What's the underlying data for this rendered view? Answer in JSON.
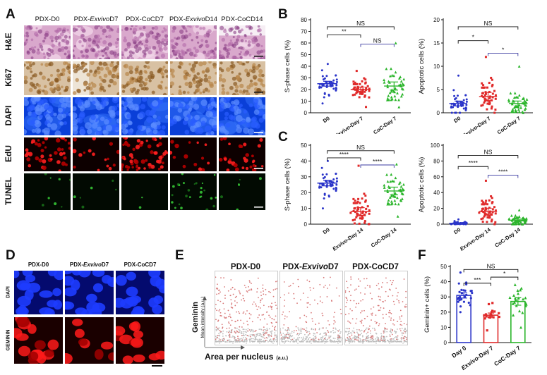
{
  "panelA": {
    "label": "A",
    "columns": [
      "PDX-D0",
      "PDX-ExvivoD7",
      "PDX-CoCD7",
      "PDX-ExvivoD14",
      "PDX-CoCD14"
    ],
    "column_parts": [
      {
        "pre": "PDX-D0",
        "it": "",
        "post": ""
      },
      {
        "pre": "PDX-",
        "it": "Exvivo",
        "post": "D7"
      },
      {
        "pre": "PDX-CoCD7",
        "it": "",
        "post": ""
      },
      {
        "pre": "PDX-",
        "it": "Exvivo",
        "post": "D14"
      },
      {
        "pre": "PDX-CoCD14",
        "it": "",
        "post": ""
      }
    ],
    "rows": [
      "H&E",
      "Ki67",
      "DAPI",
      "EdU",
      "TUNEL"
    ]
  },
  "panelB": {
    "label": "B"
  },
  "panelC": {
    "label": "C"
  },
  "panelD": {
    "label": "D",
    "columns": [
      "PDX-D0",
      "PDX-ExvivoD7",
      "PDX-CoCD7"
    ],
    "column_parts": [
      {
        "pre": "PDX-D0",
        "it": "",
        "post": ""
      },
      {
        "pre": "PDX-",
        "it": "Exvivo",
        "post": "D7"
      },
      {
        "pre": "PDX-CoCD7",
        "it": "",
        "post": ""
      }
    ],
    "rows": [
      "DAPI",
      "GEMININ"
    ]
  },
  "panelE": {
    "label": "E",
    "titles": [
      "PDX-D0",
      "PDX-ExvivoD7",
      "PDX-CoCD7"
    ],
    "title_parts": [
      {
        "pre": "PDX-D0",
        "it": "",
        "post": ""
      },
      {
        "pre": "PDX-",
        "it": "Exvivo",
        "post": "D7"
      },
      {
        "pre": "PDX-CoCD7",
        "it": "",
        "post": ""
      }
    ],
    "ylabel": "Geminin",
    "ylabel_sub": "Mean intensity (a.u.)",
    "xlabel": "Area per nucleus",
    "xlabel_sub": "(a.u.)"
  },
  "panelF": {
    "label": "F"
  },
  "chart_data": [
    {
      "id": "B1",
      "type": "scatter",
      "ylabel": "S-phase cells (%)",
      "ylim": [
        0,
        80
      ],
      "yticks": [
        0,
        10,
        20,
        30,
        40,
        50,
        60,
        70,
        80
      ],
      "categories": [
        "D0",
        "Exvivo-Day 7",
        "CoC-Day 7"
      ],
      "colors": [
        "#2b35c9",
        "#e02a2a",
        "#2bb52b"
      ],
      "means": [
        25,
        20,
        23
      ],
      "sd": [
        6,
        6,
        10
      ],
      "n": [
        45,
        45,
        45
      ],
      "spread": [
        [
          8,
          42
        ],
        [
          5,
          36
        ],
        [
          5,
          60
        ]
      ],
      "brackets": [
        {
          "from": 0,
          "to": 1,
          "label": "**",
          "y": 67,
          "color": "#111"
        },
        {
          "from": 0,
          "to": 2,
          "label": "NS",
          "y": 74,
          "color": "#111"
        },
        {
          "from": 1,
          "to": 2,
          "label": "NS",
          "y": 59,
          "color": "#3a3aa0"
        }
      ]
    },
    {
      "id": "B2",
      "type": "scatter",
      "ylabel": "Apoptotic cells (%)",
      "ylim": [
        0,
        20
      ],
      "yticks": [
        0,
        5,
        10,
        15,
        20
      ],
      "categories": [
        "D0",
        "Exvivo-Day 7",
        "CoC-Day 7"
      ],
      "colors": [
        "#2b35c9",
        "#e02a2a",
        "#2bb52b"
      ],
      "means": [
        2,
        3.5,
        2
      ],
      "sd": [
        1.5,
        2.5,
        1.5
      ],
      "n": [
        45,
        45,
        45
      ],
      "spread": [
        [
          0,
          8
        ],
        [
          0,
          12
        ],
        [
          0,
          10
        ]
      ],
      "brackets": [
        {
          "from": 0,
          "to": 1,
          "label": "*",
          "y": 15.5,
          "color": "#111"
        },
        {
          "from": 0,
          "to": 2,
          "label": "NS",
          "y": 18.5,
          "color": "#111"
        },
        {
          "from": 1,
          "to": 2,
          "label": "*",
          "y": 12.8,
          "color": "#3a3aa0"
        }
      ]
    },
    {
      "id": "C1",
      "type": "scatter",
      "ylabel": "S-phase cells (%)",
      "ylim": [
        0,
        50
      ],
      "yticks": [
        0,
        10,
        20,
        30,
        40,
        50
      ],
      "categories": [
        "D0",
        "Exvivo-Day 14",
        "CoC-Day 14"
      ],
      "colors": [
        "#2b35c9",
        "#e02a2a",
        "#2bb52b"
      ],
      "means": [
        26,
        8,
        21
      ],
      "sd": [
        5,
        7,
        7
      ],
      "n": [
        45,
        50,
        48
      ],
      "spread": [
        [
          10,
          40
        ],
        [
          0,
          37
        ],
        [
          5,
          38
        ]
      ],
      "brackets": [
        {
          "from": 0,
          "to": 1,
          "label": "****",
          "y": 42,
          "color": "#111"
        },
        {
          "from": 0,
          "to": 2,
          "label": "NS",
          "y": 46.5,
          "color": "#111"
        },
        {
          "from": 1,
          "to": 2,
          "label": "****",
          "y": 37.5,
          "color": "#3a3aa0"
        }
      ]
    },
    {
      "id": "C2",
      "type": "scatter",
      "ylabel": "Apoptotic cells (%)",
      "ylim": [
        0,
        100
      ],
      "yticks": [
        0,
        20,
        40,
        60,
        80,
        100
      ],
      "categories": [
        "D0",
        "Exvivo-Day 14",
        "CoC-Day 14"
      ],
      "colors": [
        "#2b35c9",
        "#e02a2a",
        "#2bb52b"
      ],
      "means": [
        1,
        16,
        5
      ],
      "sd": [
        1.5,
        12,
        4
      ],
      "n": [
        40,
        50,
        45
      ],
      "spread": [
        [
          0,
          6
        ],
        [
          0,
          55
        ],
        [
          0,
          18
        ]
      ],
      "brackets": [
        {
          "from": 0,
          "to": 1,
          "label": "****",
          "y": 73,
          "color": "#111"
        },
        {
          "from": 0,
          "to": 2,
          "label": "NS",
          "y": 87,
          "color": "#111"
        },
        {
          "from": 1,
          "to": 2,
          "label": "****",
          "y": 62,
          "color": "#3a3aa0"
        }
      ]
    },
    {
      "id": "F",
      "type": "bar",
      "ylabel": "Geminin+ cells (%)",
      "ylim": [
        0,
        50
      ],
      "yticks": [
        0,
        10,
        20,
        30,
        40,
        50
      ],
      "categories": [
        "Day 0",
        "Exvivo-Day 7",
        "CoC-Day 7"
      ],
      "colors": [
        "#2b35c9",
        "#e02a2a",
        "#2bb52b"
      ],
      "values": [
        31,
        18,
        27
      ],
      "sd": [
        5,
        4,
        7
      ],
      "n": [
        28,
        18,
        22
      ],
      "spread": [
        [
          20,
          46
        ],
        [
          8,
          26
        ],
        [
          10,
          38
        ]
      ],
      "brackets": [
        {
          "from": 0,
          "to": 1,
          "label": "***",
          "y": 39,
          "color": "#111"
        },
        {
          "from": 0,
          "to": 2,
          "label": "NS",
          "y": 48,
          "color": "#111"
        },
        {
          "from": 1,
          "to": 2,
          "label": "*",
          "y": 43,
          "color": "#111"
        }
      ]
    }
  ]
}
